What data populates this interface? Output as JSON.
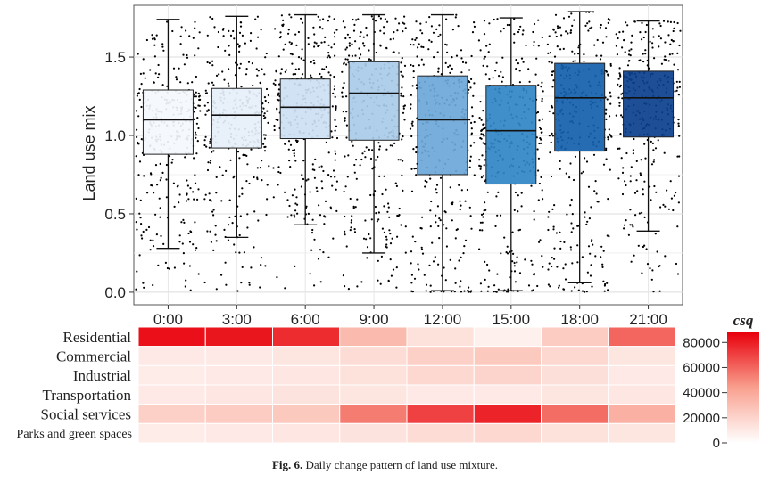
{
  "chart_data": [
    {
      "type": "box",
      "ylabel": "Land use mix",
      "ylim": [
        -0.08,
        1.83
      ],
      "yticks": [
        0.0,
        0.5,
        1.0,
        1.5
      ],
      "ytick_labels": [
        "0.0",
        "0.5",
        "1.0",
        "1.5"
      ],
      "grid": true,
      "categories": [
        "0:00",
        "3:00",
        "6:00",
        "9:00",
        "12:00",
        "15:00",
        "18:00",
        "21:00"
      ],
      "boxes": [
        {
          "min": 0.28,
          "q1": 0.88,
          "median": 1.1,
          "q3": 1.29,
          "max": 1.74,
          "fill": "#f4f8fd"
        },
        {
          "min": 0.35,
          "q1": 0.92,
          "median": 1.13,
          "q3": 1.3,
          "max": 1.76,
          "fill": "#e6f0fa"
        },
        {
          "min": 0.43,
          "q1": 0.98,
          "median": 1.18,
          "q3": 1.36,
          "max": 1.77,
          "fill": "#cde0f4"
        },
        {
          "min": 0.25,
          "q1": 0.97,
          "median": 1.27,
          "q3": 1.47,
          "max": 1.77,
          "fill": "#a8cbe9"
        },
        {
          "min": 0.01,
          "q1": 0.75,
          "median": 1.1,
          "q3": 1.38,
          "max": 1.77,
          "fill": "#6ba7d8"
        },
        {
          "min": 0.01,
          "q1": 0.69,
          "median": 1.03,
          "q3": 1.32,
          "max": 1.75,
          "fill": "#3185c6"
        },
        {
          "min": 0.06,
          "q1": 0.9,
          "median": 1.24,
          "q3": 1.46,
          "max": 1.79,
          "fill": "#1460ad"
        },
        {
          "min": 0.39,
          "q1": 0.99,
          "median": 1.24,
          "q3": 1.41,
          "max": 1.73,
          "fill": "#0b3f8d"
        }
      ]
    },
    {
      "type": "heatmap",
      "colorbar_title": "csq",
      "colorbar_ticks": [
        0,
        20000,
        40000,
        60000,
        80000
      ],
      "colorbar_tick_labels": [
        "0",
        "20000",
        "40000",
        "60000",
        "80000"
      ],
      "vmax": 88000,
      "x": [
        "0:00",
        "3:00",
        "6:00",
        "9:00",
        "12:00",
        "15:00",
        "18:00",
        "21:00"
      ],
      "rows": [
        "Residential",
        "Commercial",
        "Industrial",
        "Transportation",
        "Social services",
        "Parks and green spaces"
      ],
      "values": [
        [
          84000,
          82000,
          76000,
          32000,
          14000,
          7000,
          24000,
          60000
        ],
        [
          10000,
          10000,
          12000,
          16000,
          22000,
          25000,
          18000,
          12000
        ],
        [
          9000,
          10000,
          11000,
          14000,
          18000,
          20000,
          15000,
          10000
        ],
        [
          10000,
          11000,
          13000,
          12000,
          10000,
          10000,
          12000,
          11000
        ],
        [
          22000,
          24000,
          25000,
          54000,
          70000,
          78000,
          58000,
          36000
        ],
        [
          9000,
          10000,
          11000,
          13000,
          16000,
          18000,
          14000,
          12000
        ]
      ]
    }
  ],
  "caption": {
    "label": "Fig. 6.",
    "text": "Daily change pattern of land use mixture."
  }
}
